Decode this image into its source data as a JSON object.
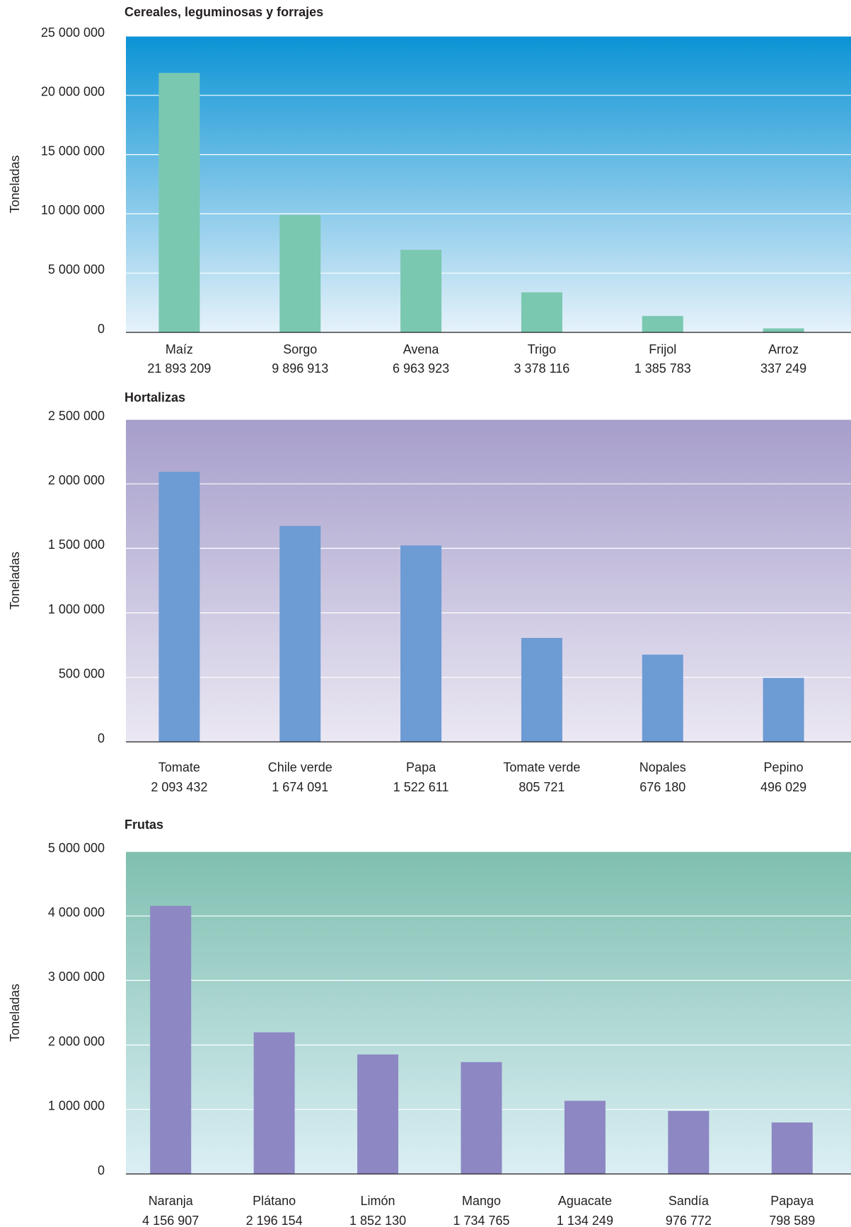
{
  "chart_data": [
    {
      "type": "bar",
      "title": "Cereales, leguminosas y forrajes",
      "ylabel": "Toneladas",
      "categories": [
        "Maíz",
        "Sorgo",
        "Avena",
        "Trigo",
        "Frijol",
        "Arroz"
      ],
      "values": [
        21893209,
        9896913,
        6963923,
        3378116,
        1385783,
        337249
      ],
      "value_labels": [
        "21 893 209",
        "9 896 913",
        "6 963 923",
        "3 378 116",
        "1 385 783",
        "337 249"
      ],
      "ylim": [
        0,
        25000000
      ],
      "yticks": [
        0,
        {
          "value": 5000000,
          "label": "5 000 000"
        },
        {
          "value": 10000000,
          "label": "10 000 000"
        },
        {
          "value": 15000000,
          "label": "15 000 000"
        },
        {
          "value": 20000000,
          "label": "20 000 000"
        },
        {
          "value": 25000000,
          "label": "25 000 000"
        }
      ],
      "grid": true,
      "color": "#7ac8b0",
      "background": [
        "#0b93d5",
        "#e6f2fa"
      ]
    },
    {
      "type": "bar",
      "title": "Hortalizas",
      "ylabel": "Toneladas",
      "categories": [
        "Tomate",
        "Chile verde",
        "Papa",
        "Tomate verde",
        "Nopales",
        "Pepino"
      ],
      "values": [
        2093432,
        1674091,
        1522611,
        805721,
        676180,
        496029
      ],
      "value_labels": [
        "2 093 432",
        "1 674 091",
        "1 522 611",
        "805 721",
        "676 180",
        "496 029"
      ],
      "ylim": [
        0,
        2500000
      ],
      "yticks": [
        0,
        {
          "value": 500000,
          "label": "500 000"
        },
        {
          "value": 1000000,
          "label": "1 000 000"
        },
        {
          "value": 1500000,
          "label": "1 500 000"
        },
        {
          "value": 2000000,
          "label": "2 000 000"
        },
        {
          "value": 2500000,
          "label": "2 500 000"
        }
      ],
      "grid": true,
      "color": "#6d9bd4",
      "background": [
        "#a69ecb",
        "#ebe8f3"
      ]
    },
    {
      "type": "bar",
      "title": "Frutas",
      "ylabel": "Toneladas",
      "categories": [
        "Naranja",
        "Plátano",
        "Limón",
        "Mango",
        "Aguacate",
        "Sandía",
        "Papaya"
      ],
      "values": [
        4156907,
        2196154,
        1852130,
        1734765,
        1134249,
        976772,
        798589
      ],
      "value_labels": [
        "4 156 907",
        "2 196 154",
        "1 852 130",
        "1 734 765",
        "1 134 249",
        "976 772",
        "798 589"
      ],
      "ylim": [
        0,
        5000000
      ],
      "yticks": [
        0,
        {
          "value": 1000000,
          "label": "1 000 000"
        },
        {
          "value": 2000000,
          "label": "2 000 000"
        },
        {
          "value": 3000000,
          "label": "3 000 000"
        },
        {
          "value": 4000000,
          "label": "4 000 000"
        },
        {
          "value": 5000000,
          "label": "5 000 000"
        }
      ],
      "grid": true,
      "color": "#8d87c4",
      "background": [
        "#7fbfb0",
        "#dbeff4"
      ]
    }
  ]
}
